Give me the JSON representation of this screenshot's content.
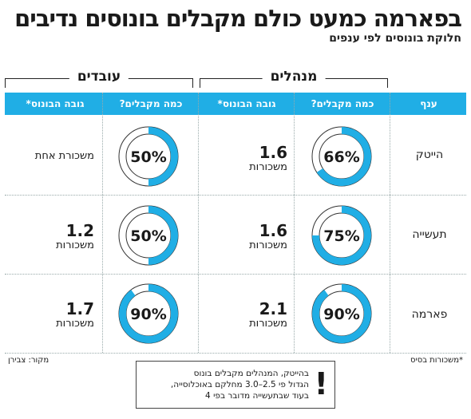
{
  "title": "בפארמה כמעט כולם מקבלים בונוסים נדיבים",
  "subtitle": "חלוקת בונוסים לפי ענפים",
  "groups": {
    "managers": "מנהלים",
    "employees": "עובדים"
  },
  "headers": {
    "sector": "ענף",
    "managers_share": "כמה מקבלים?",
    "managers_amount": "גובה הבונוס*",
    "employees_share": "כמה מקבלים?",
    "employees_amount": "גובה הבונוס*"
  },
  "colors": {
    "accent": "#20aee5",
    "track": "#ffffff",
    "track_border": "#333333"
  },
  "rows": [
    {
      "sector": "הייטק",
      "managers_pct_label": "66%",
      "managers_amount": "1.6",
      "managers_unit": "משכורות",
      "employees_pct_label": "50%",
      "employees_amount_text": "משכורת אחת"
    },
    {
      "sector": "תעשייה",
      "managers_pct_label": "75%",
      "managers_amount": "1.6",
      "managers_unit": "משכורות",
      "employees_pct_label": "50%",
      "employees_amount": "1.2",
      "employees_unit": "משכורות"
    },
    {
      "sector": "פארמה",
      "managers_pct_label": "90%",
      "managers_amount": "2.1",
      "managers_unit": "משכורות",
      "employees_pct_label": "90%",
      "employees_amount": "1.7",
      "employees_unit": "משכורות"
    }
  ],
  "footnote_left": "*משכורות בסיס",
  "source": "מקור: צבירן",
  "note": {
    "icon": "exclamation-icon",
    "bang": "!",
    "line1": "בהייטק, המנהלים מקבלים בונוס",
    "line2": "הגדול פי 2.5–3.0 מחלקם באוכלוסייה,",
    "line3": "בעוד שבתעשייה מדובר בפי 4"
  },
  "chart_data": {
    "type": "table",
    "columns": [
      "ענף",
      "מנהלים: כמה מקבלים?",
      "מנהלים: גובה הבונוס*",
      "עובדים: כמה מקבלים?",
      "עובדים: גובה הבונוס*"
    ],
    "categories": [
      "הייטק",
      "תעשייה",
      "פארמה"
    ],
    "series": [
      {
        "name": "מנהלים כמה מקבלים?",
        "values": [
          66,
          75,
          90
        ]
      },
      {
        "name": "מנהלים גובה הבונוס*",
        "values": [
          1.6,
          1.6,
          2.1
        ]
      },
      {
        "name": "עובדים כמה מקבלים?",
        "values": [
          50,
          50,
          90
        ]
      },
      {
        "name": "עובדים גובה הבונוס*",
        "values": [
          1,
          1.2,
          1.7
        ]
      }
    ]
  }
}
